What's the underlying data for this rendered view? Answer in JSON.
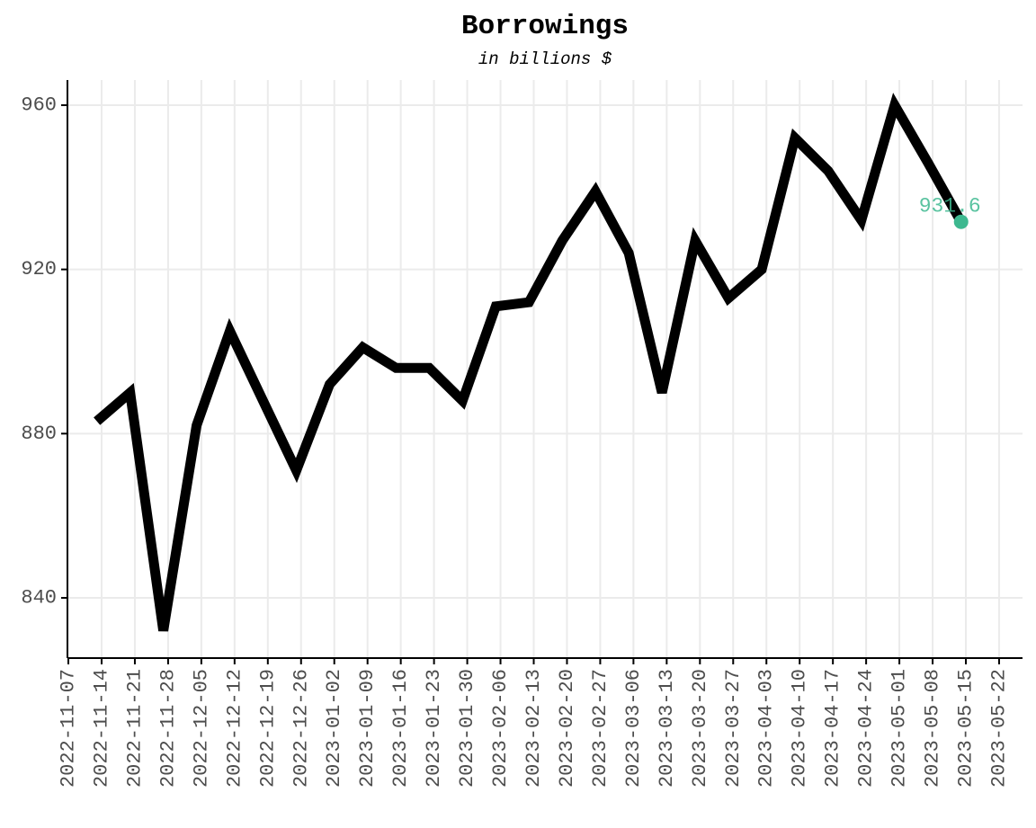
{
  "chart_data": {
    "type": "line",
    "title": "Borrowings",
    "subtitle": "in billions $",
    "xlabel": "",
    "ylabel": "",
    "x_axis": "date",
    "xlim": [
      "2022-11-07",
      "2023-05-22"
    ],
    "ylim": [
      825,
      966
    ],
    "y_ticks": [
      840,
      880,
      920,
      960
    ],
    "x_ticks": [
      "2022-11-07",
      "2022-11-14",
      "2022-11-21",
      "2022-11-28",
      "2022-12-05",
      "2022-12-12",
      "2022-12-19",
      "2022-12-26",
      "2023-01-02",
      "2023-01-09",
      "2023-01-16",
      "2023-01-23",
      "2023-01-30",
      "2023-02-06",
      "2023-02-13",
      "2023-02-20",
      "2023-02-27",
      "2023-03-06",
      "2023-03-13",
      "2023-03-20",
      "2023-03-27",
      "2023-04-03",
      "2023-04-10",
      "2023-04-17",
      "2023-04-24",
      "2023-05-01",
      "2023-05-08",
      "2023-05-15",
      "2023-05-22"
    ],
    "grid": true,
    "legend": "none",
    "line_color": "#000000",
    "highlight_color": "#3db88f",
    "series": [
      {
        "x": [
          "2022-11-13",
          "2022-11-20",
          "2022-11-27",
          "2022-12-04",
          "2022-12-11",
          "2022-12-18",
          "2022-12-25",
          "2023-01-01",
          "2023-01-08",
          "2023-01-15",
          "2023-01-22",
          "2023-01-29",
          "2023-02-05",
          "2023-02-12",
          "2023-02-19",
          "2023-02-26",
          "2023-03-05",
          "2023-03-12",
          "2023-03-19",
          "2023-03-26",
          "2023-04-02",
          "2023-04-09",
          "2023-04-16",
          "2023-04-23",
          "2023-04-30",
          "2023-05-07",
          "2023-05-14"
        ],
        "values": [
          883,
          890,
          832,
          882,
          905,
          888,
          871,
          892,
          901,
          896,
          896,
          888,
          911,
          912,
          927,
          939,
          924,
          890,
          927,
          913,
          920,
          952,
          944,
          932,
          960,
          946,
          931.6
        ]
      }
    ],
    "last_value_label": "931.6"
  }
}
